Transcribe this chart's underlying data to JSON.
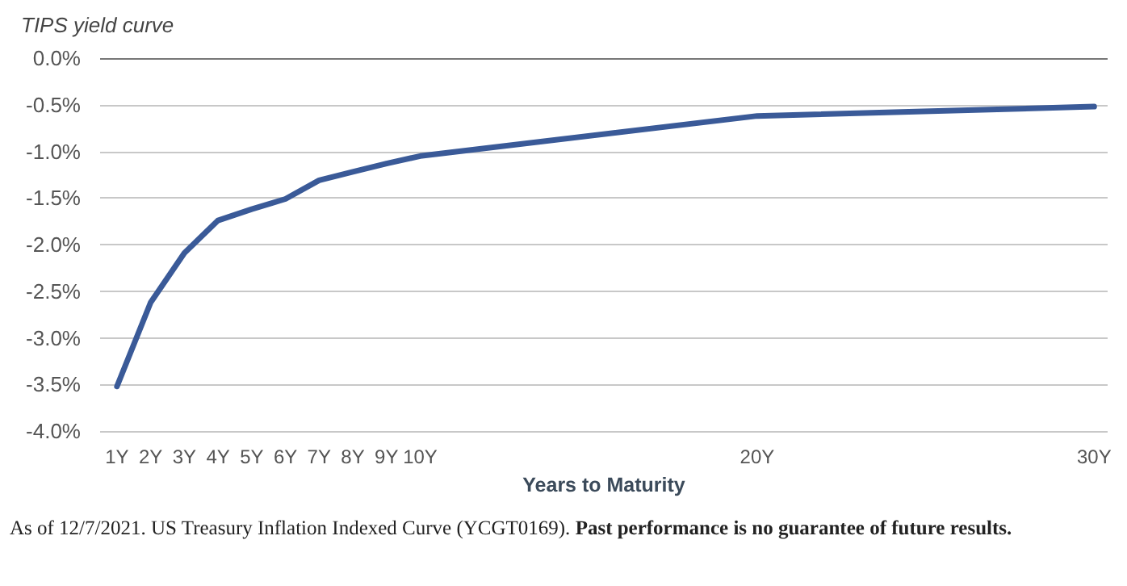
{
  "chart_data": {
    "type": "line",
    "title": "TIPS yield curve",
    "xlabel": "Years to Maturity",
    "x": [
      1,
      2,
      3,
      4,
      5,
      6,
      7,
      8,
      9,
      10,
      20,
      30
    ],
    "series": [
      {
        "color": "#3a5a98",
        "values": [
          -3.52,
          -2.62,
          -2.09,
          -1.74,
          -1.62,
          -1.51,
          -1.31,
          -1.22,
          -1.13,
          -1.05,
          -0.62,
          -0.52
        ]
      }
    ],
    "xlim": [
      0.5,
      30.4
    ],
    "xticks": [
      {
        "value": 1,
        "label": "1Y"
      },
      {
        "value": 2,
        "label": "2Y"
      },
      {
        "value": 3,
        "label": "3Y"
      },
      {
        "value": 4,
        "label": "4Y"
      },
      {
        "value": 5,
        "label": "5Y"
      },
      {
        "value": 6,
        "label": "6Y"
      },
      {
        "value": 7,
        "label": "7Y"
      },
      {
        "value": 8,
        "label": "8Y"
      },
      {
        "value": 9,
        "label": "9Y"
      },
      {
        "value": 10,
        "label": "10Y"
      },
      {
        "value": 20,
        "label": "20Y"
      },
      {
        "value": 30,
        "label": "30Y"
      }
    ],
    "ylim": [
      -4,
      0
    ],
    "yticks": [
      {
        "value": -4,
        "label": "-4.0%"
      },
      {
        "value": -3.5,
        "label": "-3.5%"
      },
      {
        "value": -3,
        "label": "-3.0%"
      },
      {
        "value": -2.5,
        "label": "-2.5%"
      },
      {
        "value": -2,
        "label": "-2.0%"
      },
      {
        "value": -1.5,
        "label": "-1.5%"
      },
      {
        "value": -1,
        "label": "-1.0%"
      },
      {
        "value": -0.5,
        "label": "-0.5%"
      },
      {
        "value": 0,
        "label": "0.0%"
      }
    ],
    "grid": "y",
    "marker": "none",
    "line_style": "solid",
    "annotations": [
      "As of 12/7/2021. US Treasury Inflation Indexed Curve (YCGT0169).",
      "Past performance is no guarantee of future results."
    ]
  }
}
